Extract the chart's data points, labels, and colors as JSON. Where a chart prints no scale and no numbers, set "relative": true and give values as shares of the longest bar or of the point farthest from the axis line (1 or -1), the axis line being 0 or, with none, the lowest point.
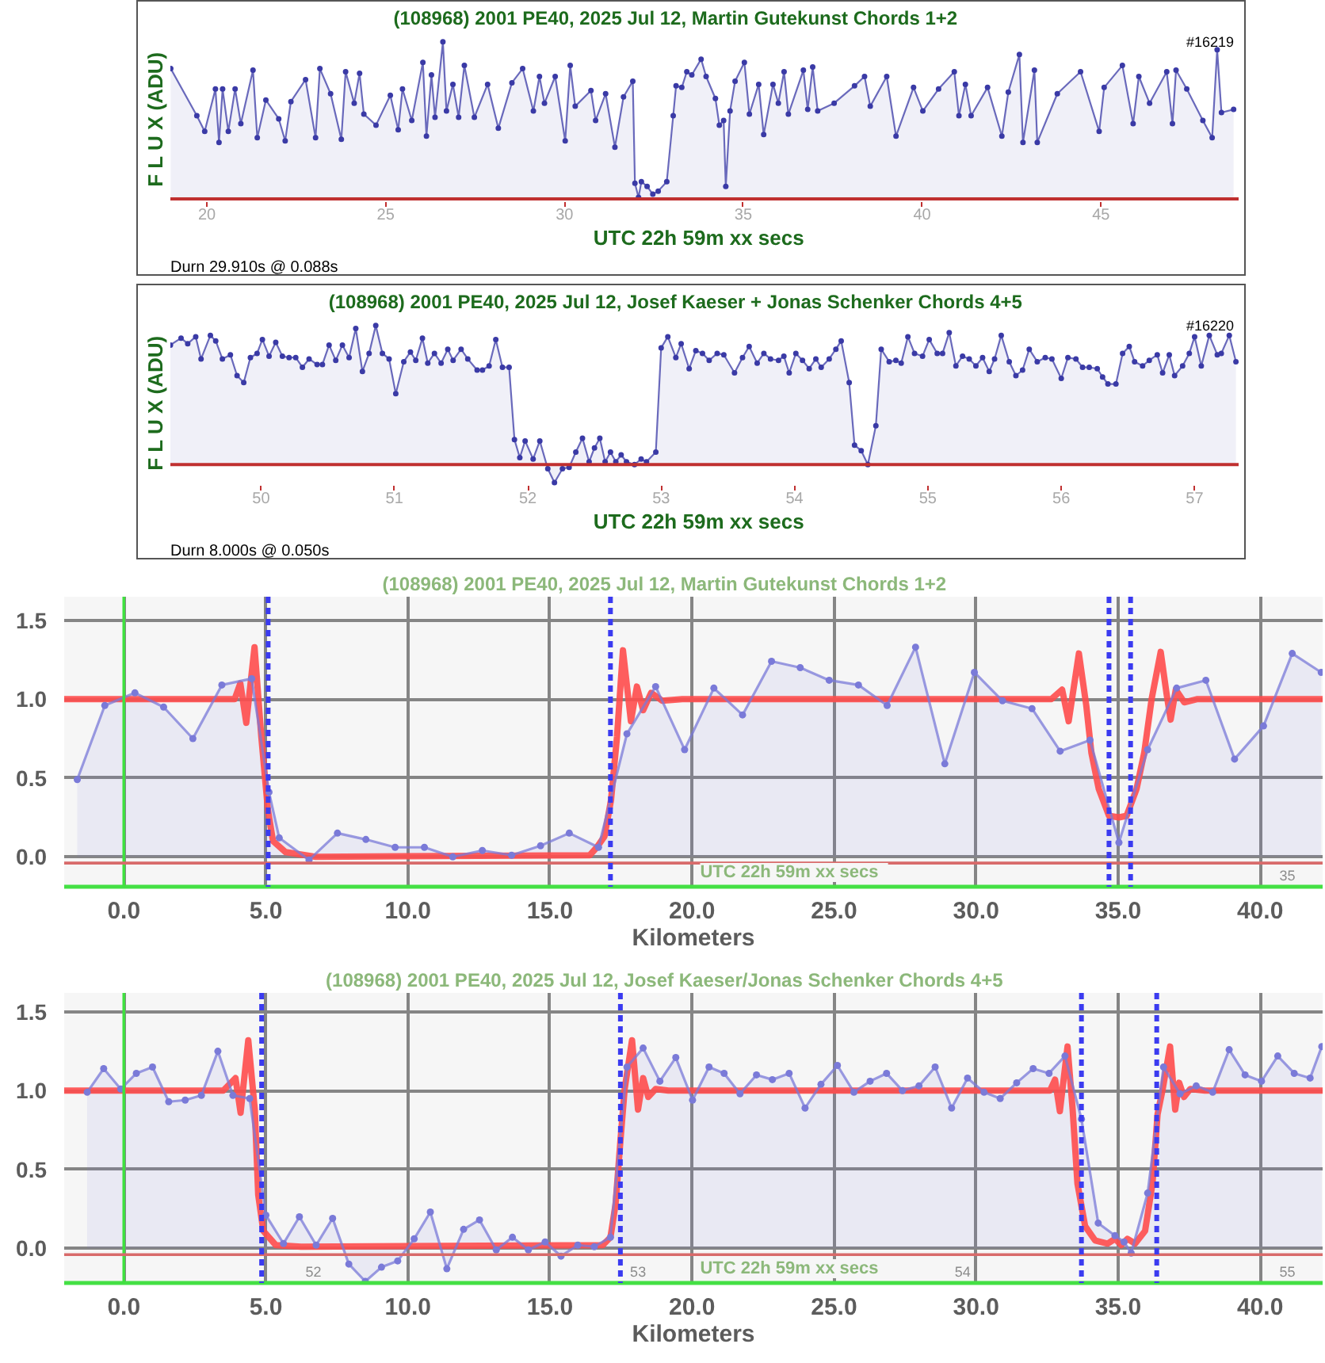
{
  "chart_data": [
    {
      "type": "area",
      "title": "(108968) 2001 PE40,    2025 Jul 12,    Martin Gutekunst      Chords 1+2",
      "xlabel": "UTC  22h 59m  xx secs",
      "ylabel": "F L U X  (ADU)",
      "annotations": [
        "#16219",
        "Durn 29.910s @ 0.088s"
      ],
      "relative": true,
      "xlim": [
        18.98,
        48.85
      ],
      "xticks": [
        20,
        25,
        30,
        35,
        40,
        45
      ],
      "marker": "circle",
      "series": [
        {
          "color": "#3a3aa6",
          "x": [
            18.99,
            19.72,
            19.94,
            20.24,
            20.34,
            20.44,
            20.6,
            20.79,
            20.95,
            21.29,
            21.41,
            21.65,
            22.01,
            22.19,
            22.35,
            22.76,
            23.04,
            23.16,
            23.46,
            23.76,
            23.88,
            24.12,
            24.27,
            24.39,
            24.73,
            25.13,
            25.35,
            25.47,
            25.73,
            26.04,
            26.14,
            26.28,
            26.38,
            26.6,
            26.7,
            26.88,
            27.04,
            27.2,
            27.48,
            27.85,
            28.15,
            28.53,
            28.83,
            29.13,
            29.3,
            29.44,
            29.74,
            30.02,
            30.16,
            30.3,
            30.74,
            30.87,
            31.15,
            31.41,
            31.65,
            31.91,
            31.97,
            32.07,
            32.15,
            32.31,
            32.47,
            32.62,
            32.86,
            33.04,
            33.12,
            33.28,
            33.42,
            33.56,
            33.82,
            33.96,
            34.22,
            34.33,
            34.45,
            34.51,
            34.63,
            34.77,
            35.03,
            35.17,
            35.43,
            35.57,
            35.83,
            35.98,
            36.14,
            36.26,
            36.68,
            36.8,
            36.94,
            37.08,
            37.54,
            38.11,
            38.39,
            38.55,
            39.01,
            39.27,
            39.76,
            40.02,
            40.46,
            40.9,
            41.03,
            41.21,
            41.37,
            41.83,
            42.23,
            42.41,
            42.72,
            42.82,
            43.14,
            43.22,
            43.78,
            44.43,
            44.95,
            45.09,
            45.6,
            45.9,
            46.06,
            46.36,
            46.84,
            47.0,
            47.1,
            47.4,
            47.85,
            48.11,
            48.25,
            48.37,
            48.71
          ],
          "values": [
            0.83,
            0.53,
            0.43,
            0.7,
            0.36,
            0.7,
            0.43,
            0.7,
            0.48,
            0.82,
            0.39,
            0.63,
            0.51,
            0.37,
            0.62,
            0.76,
            0.39,
            0.83,
            0.67,
            0.38,
            0.81,
            0.61,
            0.8,
            0.54,
            0.47,
            0.66,
            0.44,
            0.7,
            0.5,
            0.87,
            0.4,
            0.79,
            0.52,
            1.0,
            0.56,
            0.73,
            0.52,
            0.85,
            0.52,
            0.73,
            0.45,
            0.74,
            0.83,
            0.56,
            0.78,
            0.61,
            0.78,
            0.37,
            0.85,
            0.59,
            0.69,
            0.5,
            0.67,
            0.33,
            0.65,
            0.75,
            0.1,
            0.01,
            0.11,
            0.08,
            0.03,
            0.05,
            0.11,
            0.53,
            0.72,
            0.71,
            0.81,
            0.79,
            0.89,
            0.78,
            0.64,
            0.47,
            0.5,
            0.08,
            0.56,
            0.75,
            0.87,
            0.54,
            0.73,
            0.41,
            0.73,
            0.61,
            0.81,
            0.54,
            0.82,
            0.57,
            0.84,
            0.56,
            0.61,
            0.72,
            0.78,
            0.59,
            0.78,
            0.4,
            0.71,
            0.56,
            0.7,
            0.81,
            0.53,
            0.73,
            0.53,
            0.71,
            0.4,
            0.68,
            0.92,
            0.36,
            0.82,
            0.36,
            0.67,
            0.81,
            0.43,
            0.71,
            0.85,
            0.48,
            0.78,
            0.61,
            0.81,
            0.48,
            0.82,
            0.7,
            0.5,
            0.39,
            0.95,
            0.55,
            0.57
          ]
        }
      ]
    },
    {
      "type": "area",
      "title": "(108968) 2001 PE40,    2025 Jul 12,    Josef Kaeser + Jonas Schenker      Chords 4+5",
      "xlabel": "UTC  22h 59m  xx secs",
      "ylabel": "F L U X  (ADU)",
      "annotations": [
        "#16220",
        "Durn 8.000s @ 0.050s"
      ],
      "relative": true,
      "xlim": [
        49.32,
        57.33
      ],
      "xticks": [
        50,
        51,
        52,
        53,
        54,
        55,
        56,
        57
      ],
      "marker": "circle",
      "series": [
        {
          "color": "#3a3aa6",
          "x": [
            49.32,
            49.4,
            49.45,
            49.51,
            49.55,
            49.62,
            49.66,
            49.71,
            49.77,
            49.82,
            49.87,
            49.92,
            49.97,
            50.01,
            50.06,
            50.11,
            50.16,
            50.21,
            50.26,
            50.31,
            50.36,
            50.42,
            50.46,
            50.51,
            50.56,
            50.61,
            50.66,
            50.71,
            50.76,
            50.81,
            50.86,
            50.91,
            50.96,
            51.01,
            51.07,
            51.12,
            51.16,
            51.21,
            51.25,
            51.3,
            51.35,
            51.4,
            51.44,
            51.5,
            51.55,
            51.62,
            51.66,
            51.71,
            51.76,
            51.81,
            51.86,
            51.9,
            51.94,
            51.98,
            52.04,
            52.09,
            52.15,
            52.2,
            52.26,
            52.31,
            52.36,
            52.41,
            52.46,
            52.5,
            52.54,
            52.58,
            52.62,
            52.66,
            52.7,
            52.74,
            52.8,
            52.85,
            52.89,
            52.96,
            53.0,
            53.05,
            53.11,
            53.15,
            53.21,
            53.26,
            53.31,
            53.36,
            53.42,
            53.47,
            53.55,
            53.61,
            53.66,
            53.72,
            53.77,
            53.82,
            53.88,
            53.92,
            53.96,
            54.01,
            54.06,
            54.11,
            54.16,
            54.2,
            54.26,
            54.31,
            54.35,
            54.41,
            54.45,
            54.5,
            54.55,
            54.61,
            54.65,
            54.71,
            54.76,
            54.8,
            54.85,
            54.9,
            54.96,
            55.01,
            55.07,
            55.11,
            55.16,
            55.21,
            55.26,
            55.31,
            55.36,
            55.41,
            55.46,
            55.5,
            55.55,
            55.61,
            55.66,
            55.71,
            55.76,
            55.82,
            55.88,
            55.93,
            56.0,
            56.05,
            56.11,
            56.16,
            56.21,
            56.27,
            56.31,
            56.35,
            56.41,
            56.46,
            56.51,
            56.55,
            56.61,
            56.66,
            56.72,
            56.76,
            56.81,
            56.85,
            56.91,
            56.96,
            57.0,
            57.05,
            57.11,
            57.17,
            57.2,
            57.26,
            57.31
          ],
          "values": [
            0.86,
            0.91,
            0.87,
            0.92,
            0.76,
            0.93,
            0.89,
            0.76,
            0.79,
            0.64,
            0.59,
            0.77,
            0.8,
            0.9,
            0.78,
            0.88,
            0.78,
            0.77,
            0.77,
            0.7,
            0.76,
            0.72,
            0.72,
            0.86,
            0.75,
            0.86,
            0.77,
            0.98,
            0.67,
            0.8,
            1.0,
            0.8,
            0.76,
            0.51,
            0.74,
            0.81,
            0.75,
            0.91,
            0.73,
            0.8,
            0.73,
            0.83,
            0.75,
            0.83,
            0.76,
            0.68,
            0.68,
            0.71,
            0.9,
            0.7,
            0.7,
            0.18,
            0.05,
            0.17,
            0.04,
            0.17,
            -0.03,
            -0.13,
            -0.03,
            -0.02,
            0.09,
            0.19,
            0.02,
            0.12,
            0.19,
            0.02,
            0.09,
            0.02,
            0.07,
            0.02,
            0.0,
            0.04,
            0.02,
            0.09,
            0.84,
            0.92,
            0.77,
            0.87,
            0.69,
            0.82,
            0.8,
            0.75,
            0.8,
            0.79,
            0.66,
            0.77,
            0.85,
            0.73,
            0.8,
            0.76,
            0.75,
            0.78,
            0.66,
            0.8,
            0.75,
            0.69,
            0.76,
            0.7,
            0.76,
            0.83,
            0.89,
            0.59,
            0.14,
            0.1,
            0.0,
            0.28,
            0.83,
            0.74,
            0.75,
            0.73,
            0.92,
            0.8,
            0.78,
            0.9,
            0.8,
            0.8,
            0.95,
            0.71,
            0.78,
            0.76,
            0.71,
            0.77,
            0.67,
            0.76,
            0.93,
            0.74,
            0.64,
            0.68,
            0.83,
            0.74,
            0.77,
            0.76,
            0.62,
            0.77,
            0.76,
            0.7,
            0.7,
            0.69,
            0.63,
            0.58,
            0.58,
            0.8,
            0.85,
            0.74,
            0.71,
            0.75,
            0.79,
            0.66,
            0.79,
            0.64,
            0.71,
            0.8,
            0.92,
            0.71,
            0.93,
            0.79,
            0.8,
            0.93,
            0.74
          ]
        }
      ]
    },
    {
      "type": "line",
      "title": "(108968) 2001 PE40,    2025 Jul 12,    Martin Gutekunst      Chords 1+2",
      "xlabel": "Kilometers",
      "annotations": [
        "UTC  22h 59m  xx secs",
        "35"
      ],
      "xlim": [
        -2.1,
        42.2
      ],
      "ylim": [
        -0.19,
        1.65
      ],
      "xticks": [
        {
          "value": 0,
          "label": "0.0"
        },
        {
          "value": 5,
          "label": "5.0"
        },
        {
          "value": 10,
          "label": "10.0"
        },
        {
          "value": 15,
          "label": "15.0"
        },
        {
          "value": 20,
          "label": "20.0"
        },
        {
          "value": 25,
          "label": "25.0"
        },
        {
          "value": 30,
          "label": "30.0"
        },
        {
          "value": 35,
          "label": "35.0"
        },
        {
          "value": 40,
          "label": "40.0"
        }
      ],
      "yticks": [
        {
          "value": 0,
          "label": "0.0"
        },
        {
          "value": 0.5,
          "label": "0.5"
        },
        {
          "value": 1,
          "label": "1.0"
        },
        {
          "value": 1.5,
          "label": "1.5"
        }
      ],
      "grid": true,
      "marker": "circle",
      "ref_lines": [
        {
          "axis": "x",
          "value": 0,
          "color": "#3fe03f"
        },
        {
          "axis": "y",
          "value": -0.04,
          "color": "#d86a6a"
        },
        {
          "axis": "x",
          "value": 5.08,
          "color": "#3b3bf0",
          "line_style": "dashed"
        },
        {
          "axis": "x",
          "value": 17.13,
          "color": "#3b3bf0",
          "line_style": "dashed"
        },
        {
          "axis": "x",
          "value": 34.68,
          "color": "#3b3bf0",
          "line_style": "dashed"
        },
        {
          "axis": "x",
          "value": 35.44,
          "color": "#3b3bf0",
          "line_style": "dashed"
        }
      ],
      "series": [
        {
          "type": "line",
          "marker": "none",
          "color": "#ff4d4d",
          "x": [
            -2.1,
            3.3,
            3.9,
            4.1,
            4.31,
            4.6,
            4.84,
            5.07,
            5.25,
            5.69,
            6.75,
            16.4,
            16.65,
            16.92,
            17.15,
            17.36,
            17.57,
            17.85,
            18.06,
            18.28,
            18.56,
            18.95,
            19.66,
            32.65,
            33.03,
            33.26,
            33.62,
            33.88,
            34.06,
            34.32,
            34.68,
            35.03,
            35.3,
            35.65,
            35.92,
            36.18,
            36.5,
            36.71,
            36.85,
            37.03,
            37.33,
            37.77,
            42.2
          ],
          "values": [
            1.0,
            1.0,
            1.0,
            1.1,
            0.85,
            1.33,
            0.76,
            0.3,
            0.1,
            0.03,
            0.0,
            0.01,
            0.06,
            0.13,
            0.36,
            0.76,
            1.31,
            0.86,
            1.08,
            0.93,
            1.04,
            0.99,
            1.0,
            1.0,
            1.06,
            0.86,
            1.29,
            0.96,
            0.66,
            0.43,
            0.26,
            0.25,
            0.26,
            0.43,
            0.66,
            1.0,
            1.3,
            1.03,
            0.87,
            1.06,
            0.98,
            1.0,
            1.0
          ]
        },
        {
          "type": "area",
          "color": "#7a7ad8",
          "x": [
            -1.64,
            -0.67,
            0.39,
            1.4,
            2.43,
            3.45,
            4.5,
            5.11,
            5.47,
            6.52,
            7.52,
            8.52,
            9.55,
            10.58,
            11.58,
            12.62,
            13.65,
            14.67,
            15.68,
            16.71,
            17.71,
            18.72,
            19.74,
            20.77,
            21.78,
            22.8,
            23.81,
            24.83,
            25.86,
            26.87,
            27.87,
            28.9,
            29.94,
            30.93,
            31.97,
            32.96,
            34.01,
            35.03,
            36.04,
            37.06,
            38.09,
            39.1,
            40.12,
            41.13,
            42.15
          ],
          "values": [
            0.49,
            0.96,
            1.04,
            0.95,
            0.75,
            1.09,
            1.13,
            0.41,
            0.12,
            -0.02,
            0.15,
            0.11,
            0.06,
            0.06,
            0.0,
            0.04,
            0.01,
            0.07,
            0.15,
            0.06,
            0.78,
            1.08,
            0.68,
            1.07,
            0.9,
            1.24,
            1.2,
            1.12,
            1.09,
            0.96,
            1.33,
            0.59,
            1.17,
            0.99,
            0.94,
            0.67,
            0.74,
            0.09,
            0.68,
            1.07,
            1.12,
            0.62,
            0.83,
            1.29,
            1.17
          ]
        }
      ]
    },
    {
      "type": "line",
      "title": "(108968) 2001 PE40,    2025 Jul 12,    Josef Kaeser/Jonas Schenker      Chords 4+5",
      "xlabel": "Kilometers",
      "annotations": [
        "UTC  22h 59m  xx secs",
        "52",
        "53",
        "54",
        "55"
      ],
      "xlim": [
        -2.1,
        42.2
      ],
      "ylim": [
        -0.22,
        1.62
      ],
      "xticks": [
        {
          "value": 0,
          "label": "0.0"
        },
        {
          "value": 5,
          "label": "5.0"
        },
        {
          "value": 10,
          "label": "10.0"
        },
        {
          "value": 15,
          "label": "15.0"
        },
        {
          "value": 20,
          "label": "20.0"
        },
        {
          "value": 25,
          "label": "25.0"
        },
        {
          "value": 30,
          "label": "30.0"
        },
        {
          "value": 35,
          "label": "35.0"
        },
        {
          "value": 40,
          "label": "40.0"
        }
      ],
      "yticks": [
        {
          "value": 0,
          "label": "0.0"
        },
        {
          "value": 0.5,
          "label": "0.5"
        },
        {
          "value": 1,
          "label": "1.0"
        },
        {
          "value": 1.5,
          "label": "1.5"
        }
      ],
      "grid": true,
      "marker": "circle",
      "ref_lines": [
        {
          "axis": "x",
          "value": 0,
          "color": "#3fe03f"
        },
        {
          "axis": "y",
          "value": -0.04,
          "color": "#d86a6a"
        },
        {
          "axis": "x",
          "value": 4.85,
          "color": "#3b3bf0",
          "line_style": "dashed"
        },
        {
          "axis": "x",
          "value": 17.48,
          "color": "#3b3bf0",
          "line_style": "dashed"
        },
        {
          "axis": "x",
          "value": 33.71,
          "color": "#3b3bf0",
          "line_style": "dashed"
        },
        {
          "axis": "x",
          "value": 36.36,
          "color": "#3b3bf0",
          "line_style": "dashed"
        }
      ],
      "series": [
        {
          "type": "line",
          "marker": "none",
          "color": "#ff4d4d",
          "x": [
            -2.1,
            3.5,
            3.93,
            4.11,
            4.38,
            4.61,
            4.73,
            4.91,
            5.35,
            6.24,
            16.86,
            17.13,
            17.31,
            17.48,
            17.63,
            17.89,
            18.1,
            18.28,
            18.46,
            18.72,
            19.17,
            32.25,
            32.6,
            32.78,
            32.95,
            33.22,
            33.4,
            33.57,
            33.84,
            34.19,
            34.63,
            34.89,
            35.11,
            35.33,
            35.6,
            35.95,
            36.21,
            36.39,
            36.57,
            36.83,
            37.01,
            37.15,
            37.32,
            37.54,
            38.06,
            42.2
          ],
          "values": [
            1.0,
            1.0,
            1.08,
            0.86,
            1.32,
            0.88,
            0.34,
            0.11,
            0.02,
            0.01,
            0.02,
            0.07,
            0.28,
            0.68,
            1.01,
            1.32,
            0.88,
            1.08,
            0.96,
            1.01,
            1.0,
            1.0,
            1.0,
            1.07,
            0.87,
            1.28,
            0.88,
            0.41,
            0.14,
            0.05,
            0.03,
            0.06,
            0.02,
            0.06,
            0.03,
            0.11,
            0.41,
            0.85,
            1.01,
            1.28,
            0.88,
            1.05,
            0.96,
            1.01,
            1.0,
            1.0
          ]
        },
        {
          "type": "area",
          "color": "#7a7ad8",
          "x": [
            -1.29,
            -0.71,
            -0.11,
            0.44,
            1.01,
            1.58,
            2.16,
            2.73,
            3.31,
            3.84,
            4.43,
            5.0,
            5.62,
            6.18,
            6.77,
            7.35,
            7.92,
            8.5,
            9.07,
            9.64,
            10.22,
            10.79,
            11.37,
            11.96,
            12.52,
            13.11,
            13.68,
            14.24,
            14.83,
            15.39,
            15.98,
            16.56,
            17.13,
            17.71,
            18.28,
            18.87,
            19.43,
            20.02,
            20.6,
            21.13,
            21.69,
            22.27,
            22.83,
            23.42,
            23.98,
            24.54,
            25.12,
            25.7,
            26.27,
            26.85,
            27.41,
            27.99,
            28.56,
            29.14,
            29.7,
            30.28,
            30.85,
            31.43,
            32.01,
            32.57,
            33.13,
            33.71,
            34.3,
            34.89,
            35.21,
            35.46,
            36.04,
            36.6,
            37.18,
            37.75,
            38.33,
            38.91,
            39.47,
            40.05,
            40.62,
            41.2,
            41.76,
            42.17
          ],
          "values": [
            0.99,
            1.14,
            1.01,
            1.11,
            1.15,
            0.93,
            0.94,
            0.97,
            1.25,
            0.97,
            0.95,
            0.21,
            0.03,
            0.2,
            0.02,
            0.19,
            -0.1,
            -0.21,
            -0.12,
            -0.08,
            0.06,
            0.23,
            -0.13,
            0.12,
            0.18,
            -0.01,
            0.07,
            -0.01,
            0.04,
            -0.05,
            0.02,
            0.01,
            0.07,
            1.15,
            1.27,
            1.06,
            1.21,
            0.94,
            1.15,
            1.11,
            0.98,
            1.1,
            1.07,
            1.11,
            0.89,
            1.04,
            1.16,
            0.99,
            1.06,
            1.11,
            1.0,
            1.03,
            1.15,
            0.89,
            1.08,
            0.99,
            0.95,
            1.05,
            1.14,
            1.11,
            1.22,
            0.82,
            0.16,
            0.08,
            0.04,
            -0.03,
            0.35,
            1.15,
            0.98,
            1.03,
            0.99,
            1.26,
            1.1,
            1.06,
            1.22,
            1.11,
            1.08,
            1.28
          ]
        }
      ]
    }
  ]
}
